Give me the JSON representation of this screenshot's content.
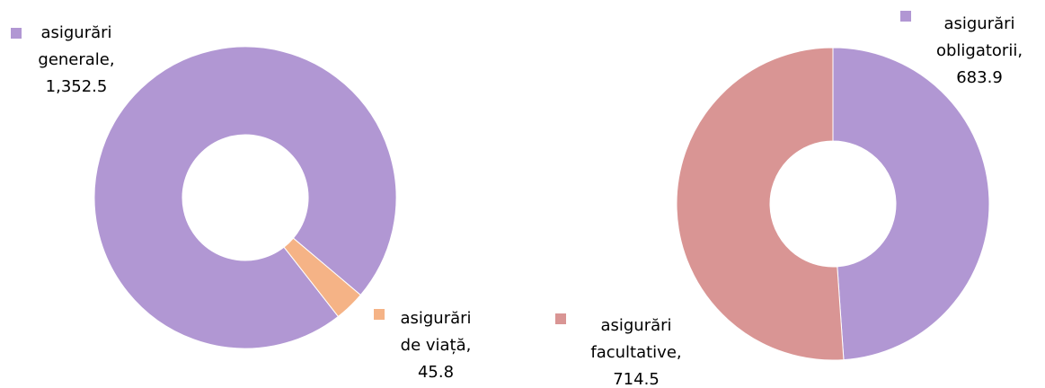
{
  "chart_data": [
    {
      "type": "donut",
      "start_angle": 142,
      "categories": [
        "asigurări generale,",
        "asigurări de viață,"
      ],
      "values": [
        1352.5,
        45.8
      ],
      "value_labels": [
        "1,352.5",
        "45.8"
      ],
      "colors": [
        "#b197d3",
        "#f5b386"
      ]
    },
    {
      "type": "donut",
      "start_angle": 0,
      "categories": [
        "asigurări obligatorii,",
        "asigurări facultative,"
      ],
      "values": [
        683.9,
        714.5
      ],
      "value_labels": [
        "683.9",
        "714.5"
      ],
      "colors": [
        "#b197d3",
        "#d99594"
      ]
    }
  ]
}
